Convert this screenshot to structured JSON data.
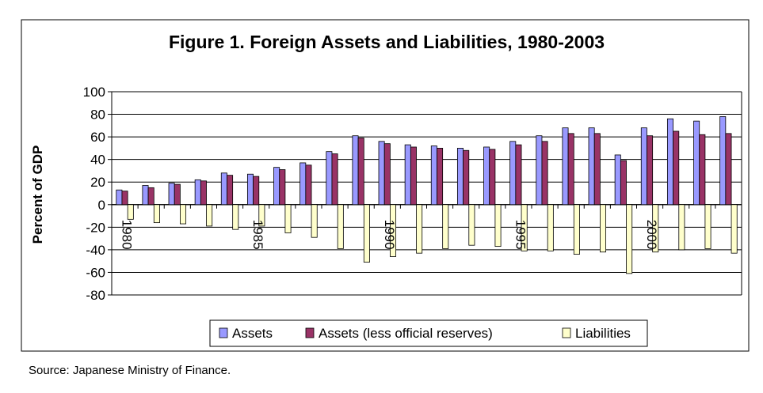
{
  "chart_data": {
    "type": "bar",
    "title": "Figure 1. Foreign Assets and Liabilities, 1980-2003",
    "ylabel": "Percent of GDP",
    "xlabel": "",
    "ylim": [
      -80,
      100
    ],
    "ytick_step": 20,
    "grid": true,
    "legend_position": "bottom",
    "categories": [
      "1980",
      "1981",
      "1982",
      "1983",
      "1984",
      "1985",
      "1986",
      "1987",
      "1988",
      "1989",
      "1990",
      "1991",
      "1992",
      "1993",
      "1994",
      "1995",
      "1996",
      "1997",
      "1998",
      "1999",
      "2000",
      "2001",
      "2002",
      "2003"
    ],
    "category_labels": [
      "1980",
      "1985",
      "1990",
      "1995",
      "2000"
    ],
    "series": [
      {
        "name": "Assets",
        "color": "#9999ff",
        "values": [
          13,
          17,
          19,
          22,
          28,
          27,
          33,
          37,
          47,
          61,
          56,
          53,
          52,
          50,
          51,
          56,
          61,
          68,
          68,
          44,
          68,
          76,
          74,
          78
        ]
      },
      {
        "name": "Assets (less official reserves)",
        "color": "#993366",
        "values": [
          12,
          15,
          18,
          21,
          26,
          25,
          31,
          35,
          45,
          59,
          54,
          51,
          50,
          48,
          49,
          53,
          56,
          63,
          63,
          39,
          61,
          65,
          62,
          63
        ]
      },
      {
        "name": "Liabilities",
        "color": "#ffffcc",
        "values": [
          -13,
          -16,
          -17,
          -19,
          -22,
          -19,
          -25,
          -29,
          -39,
          -51,
          -46,
          -43,
          -39,
          -36,
          -37,
          -41,
          -41,
          -44,
          -42,
          -61,
          -42,
          -40,
          -39,
          -43
        ]
      }
    ]
  },
  "source": "Source: Japanese Ministry of Finance."
}
